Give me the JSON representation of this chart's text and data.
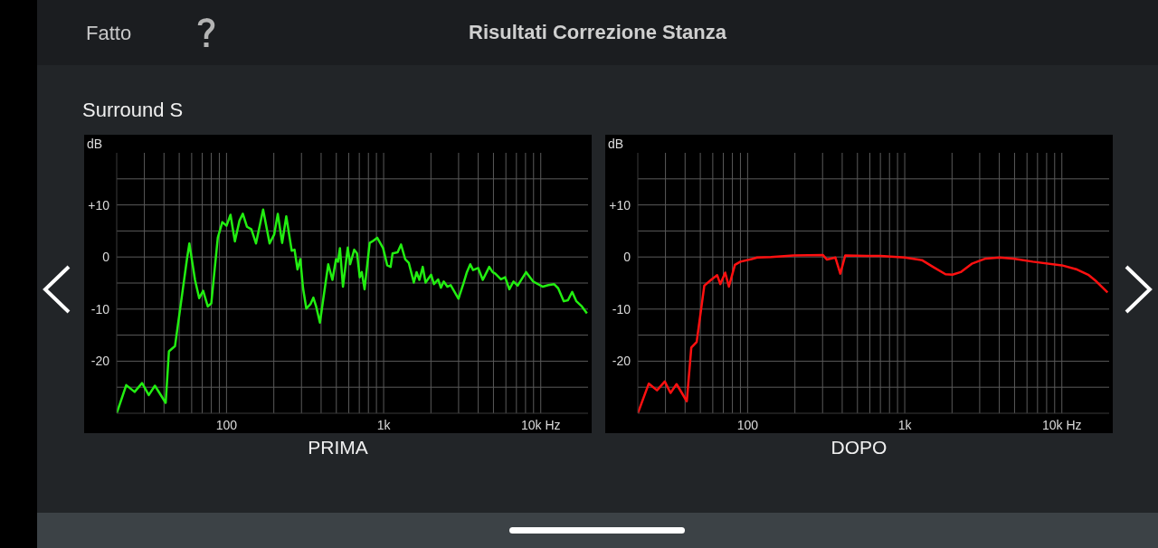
{
  "chart_data": [
    {
      "type": "line",
      "title": "Risultati Correzione Stanza",
      "subtitle": "Surround S",
      "annotations": [
        "Fatto"
      ],
      "xlabel": "PRIMA",
      "ylabel": "dB",
      "log": "x",
      "grid": true,
      "marker": "none",
      "color": "#22ee11",
      "xlim": [
        20,
        20000
      ],
      "ylim": [
        -30,
        20
      ],
      "xticks": [
        {
          "value": 30,
          "label": null
        },
        {
          "value": 40,
          "label": null
        },
        {
          "value": 50,
          "label": null
        },
        {
          "value": 60,
          "label": null
        },
        {
          "value": 70,
          "label": null
        },
        {
          "value": 80,
          "label": null
        },
        {
          "value": 90,
          "label": null
        },
        100,
        {
          "value": 200,
          "label": null
        },
        {
          "value": 300,
          "label": null
        },
        {
          "value": 400,
          "label": null
        },
        {
          "value": 500,
          "label": null
        },
        {
          "value": 600,
          "label": null
        },
        {
          "value": 700,
          "label": null
        },
        {
          "value": 800,
          "label": null
        },
        {
          "value": 900,
          "label": null
        },
        {
          "value": 1000,
          "label": "1k"
        },
        {
          "value": 2000,
          "label": null
        },
        {
          "value": 3000,
          "label": null
        },
        {
          "value": 4000,
          "label": null
        },
        {
          "value": 5000,
          "label": null
        },
        {
          "value": 6000,
          "label": null
        },
        {
          "value": 7000,
          "label": null
        },
        {
          "value": 8000,
          "label": null
        },
        {
          "value": 9000,
          "label": null
        },
        {
          "value": 10000,
          "label": "10k Hz"
        }
      ],
      "yticks": [
        {
          "value": -25,
          "label": null
        },
        -20,
        {
          "value": -15,
          "label": null
        },
        -10,
        {
          "value": -5,
          "label": null
        },
        0,
        {
          "value": 5,
          "label": null
        },
        {
          "value": 10,
          "label": "+10"
        },
        {
          "value": 15,
          "label": null
        }
      ],
      "x": [
        20,
        23,
        26,
        29,
        32,
        35,
        41,
        43,
        47,
        52,
        56,
        58,
        63,
        67,
        71,
        76,
        80,
        88,
        94,
        100,
        106,
        113,
        121,
        127,
        135,
        144,
        154,
        171,
        188,
        201,
        212,
        226,
        240,
        260,
        271,
        283,
        295,
        307,
        322,
        343,
        357,
        372,
        393,
        444,
        472,
        498,
        512,
        527,
        551,
        591,
        612,
        650,
        677,
        705,
        726,
        756,
        815,
        848,
        910,
        992,
        1054,
        1108,
        1140,
        1227,
        1290,
        1371,
        1445,
        1556,
        1621,
        1689,
        1774,
        1849,
        2006,
        2090,
        2222,
        2314,
        2412,
        2543,
        2672,
        2995,
        3213,
        3388,
        3559,
        3709,
        3993,
        4277,
        4700,
        4938,
        5140,
        5580,
        5935,
        6310,
        6710,
        7130,
        8070,
        8940,
        10310,
        11190,
        12140,
        12910,
        14020,
        14900,
        15850,
        16860,
        18280,
        19680
      ],
      "values": [
        -30,
        -24.6,
        -25.9,
        -24.2,
        -26.5,
        -24.7,
        -28,
        -18.1,
        -17.1,
        -7.5,
        -0.4,
        2.6,
        -4.4,
        -7.9,
        -6.5,
        -9.5,
        -8.9,
        3.7,
        6.7,
        6,
        8.1,
        3,
        7,
        8.3,
        5.8,
        5.3,
        2.6,
        9.1,
        2.6,
        4.3,
        8.3,
        2.7,
        7.8,
        1.2,
        1.4,
        -2.4,
        -0.4,
        -6,
        -9.9,
        -9,
        -7.8,
        -9.5,
        -12.6,
        -1.4,
        -4.4,
        -0.4,
        -0.9,
        1.7,
        -5.7,
        1.8,
        -1.4,
        1.4,
        0.7,
        -3.9,
        -2.9,
        -6.2,
        2.7,
        3,
        3.7,
        1.7,
        -1.6,
        -1.9,
        0.7,
        0.9,
        2.4,
        -0.4,
        -1.1,
        -4.9,
        -2.9,
        -4.4,
        -1.9,
        -4.9,
        -3.4,
        -5.2,
        -4.3,
        -5.9,
        -4.7,
        -5.7,
        -5.4,
        -8,
        -5.2,
        -2.9,
        -1.4,
        -2.5,
        -2.1,
        -4.4,
        -1.9,
        -2.9,
        -3.2,
        -4.3,
        -3.9,
        -6.2,
        -4.7,
        -5.5,
        -2.9,
        -4.7,
        -5.7,
        -5.4,
        -5.2,
        -6,
        -8.5,
        -8.3,
        -6.7,
        -8.5,
        -9.5,
        -10.8
      ]
    },
    {
      "type": "line",
      "xlabel": "DOPO",
      "ylabel": "dB",
      "log": "x",
      "grid": true,
      "marker": "none",
      "color": "#ff1010",
      "xlim": [
        20,
        20000
      ],
      "ylim": [
        -30,
        20
      ],
      "xticks": [
        {
          "value": 30,
          "label": null
        },
        {
          "value": 40,
          "label": null
        },
        {
          "value": 50,
          "label": null
        },
        {
          "value": 60,
          "label": null
        },
        {
          "value": 70,
          "label": null
        },
        {
          "value": 80,
          "label": null
        },
        {
          "value": 90,
          "label": null
        },
        100,
        {
          "value": 200,
          "label": null
        },
        {
          "value": 300,
          "label": null
        },
        {
          "value": 400,
          "label": null
        },
        {
          "value": 500,
          "label": null
        },
        {
          "value": 600,
          "label": null
        },
        {
          "value": 700,
          "label": null
        },
        {
          "value": 800,
          "label": null
        },
        {
          "value": 900,
          "label": null
        },
        {
          "value": 1000,
          "label": "1k"
        },
        {
          "value": 2000,
          "label": null
        },
        {
          "value": 3000,
          "label": null
        },
        {
          "value": 4000,
          "label": null
        },
        {
          "value": 5000,
          "label": null
        },
        {
          "value": 6000,
          "label": null
        },
        {
          "value": 7000,
          "label": null
        },
        {
          "value": 8000,
          "label": null
        },
        {
          "value": 9000,
          "label": null
        },
        {
          "value": 10000,
          "label": "10k Hz"
        }
      ],
      "yticks": [
        {
          "value": -25,
          "label": null
        },
        -20,
        {
          "value": -15,
          "label": null
        },
        -10,
        {
          "value": -5,
          "label": null
        },
        0,
        {
          "value": 5,
          "label": null
        },
        {
          "value": 10,
          "label": "+10"
        },
        {
          "value": 15,
          "label": null
        }
      ],
      "x": [
        20,
        23.5,
        26.5,
        29.7,
        32.3,
        35.3,
        41,
        43.8,
        47.4,
        53,
        59,
        64,
        67,
        72,
        76,
        83,
        90,
        106,
        115,
        141,
        196,
        301,
        320,
        362,
        389,
        418,
        571,
        700,
        1000,
        1286,
        1513,
        1817,
        2011,
        2270,
        2671,
        3273,
        4012,
        4913,
        6531,
        10000,
        12500,
        14720,
        16610,
        19540
      ],
      "values": [
        -30,
        -24.3,
        -25.6,
        -23.9,
        -26.1,
        -24.4,
        -27.7,
        -17.4,
        -16.3,
        -5.5,
        -4.3,
        -3.5,
        -5.2,
        -3,
        -5.7,
        -1.5,
        -0.9,
        -0.4,
        -0.1,
        0,
        0.3,
        0.4,
        -0.5,
        -0.1,
        -3.2,
        0.3,
        0.2,
        0.2,
        -0.1,
        -0.6,
        -1.9,
        -3.3,
        -3.4,
        -2.9,
        -1.3,
        -0.3,
        -0.1,
        -0.3,
        -0.9,
        -1.6,
        -2.4,
        -3.4,
        -4.7,
        -6.8
      ]
    }
  ]
}
